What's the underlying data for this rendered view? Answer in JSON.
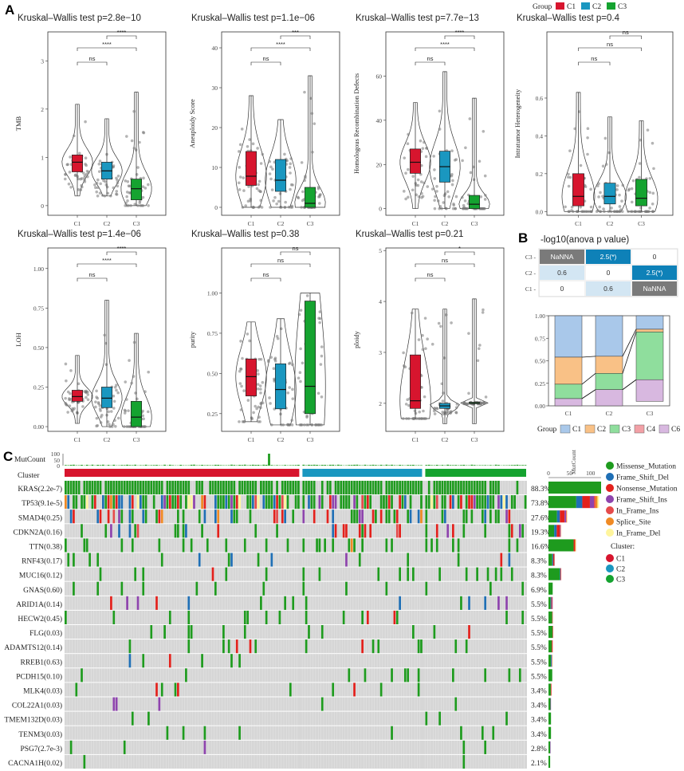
{
  "panels": {
    "a": "A",
    "b": "B",
    "c": "C"
  },
  "group_legend": {
    "title": "Group",
    "items": [
      {
        "label": "C1",
        "color": "#D7152E"
      },
      {
        "label": "C2",
        "color": "#1A97C0"
      },
      {
        "label": "C3",
        "color": "#15A330"
      }
    ]
  },
  "chart_data": [
    {
      "type": "box-violin",
      "panel": "A",
      "title": "Kruskal–Wallis test p=2.8e−10",
      "ylabel": "TMB",
      "categories": [
        "C1",
        "C2",
        "C3"
      ],
      "ylim": [
        -0.2,
        3.6
      ],
      "yticks": [
        "0",
        "1",
        "2",
        "3"
      ],
      "series": [
        {
          "name": "C1",
          "median": 0.9,
          "q1": 0.7,
          "q3": 1.05,
          "whisker": [
            0.2,
            2.1
          ]
        },
        {
          "name": "C2",
          "median": 0.72,
          "q1": 0.55,
          "q3": 0.9,
          "whisker": [
            0.2,
            1.8
          ]
        },
        {
          "name": "C3",
          "median": 0.35,
          "q1": 0.12,
          "q3": 0.55,
          "whisker": [
            0,
            2.35
          ]
        }
      ],
      "comparisons": [
        {
          "pair": [
            "C1",
            "C2"
          ],
          "label": "ns"
        },
        {
          "pair": [
            "C1",
            "C3"
          ],
          "label": "****"
        },
        {
          "pair": [
            "C2",
            "C3"
          ],
          "label": "****"
        }
      ]
    },
    {
      "type": "box-violin",
      "panel": "A",
      "title": "Kruskal–Wallis test p=1.1e−06",
      "ylabel": "Aneuploidy Score",
      "categories": [
        "C1",
        "C2",
        "C3"
      ],
      "ylim": [
        -2,
        44
      ],
      "yticks": [
        "0",
        "10",
        "20",
        "30",
        "40"
      ],
      "series": [
        {
          "name": "C1",
          "median": 7.8,
          "q1": 5.5,
          "q3": 14,
          "whisker": [
            0,
            28
          ]
        },
        {
          "name": "C2",
          "median": 6.8,
          "q1": 4,
          "q3": 12,
          "whisker": [
            0,
            22
          ]
        },
        {
          "name": "C3",
          "median": 1,
          "q1": 0,
          "q3": 5,
          "whisker": [
            0,
            33
          ]
        }
      ],
      "comparisons": [
        {
          "pair": [
            "C1",
            "C2"
          ],
          "label": "ns"
        },
        {
          "pair": [
            "C1",
            "C3"
          ],
          "label": "****"
        },
        {
          "pair": [
            "C2",
            "C3"
          ],
          "label": "***"
        }
      ]
    },
    {
      "type": "box-violin",
      "panel": "A",
      "title": "Kruskal–Wallis test p=7.7e−13",
      "ylabel": "Homologous Recombination Defects",
      "categories": [
        "C1",
        "C2",
        "C3"
      ],
      "ylim": [
        -3,
        80
      ],
      "yticks": [
        "0",
        "20",
        "40",
        "60"
      ],
      "series": [
        {
          "name": "C1",
          "median": 21,
          "q1": 16,
          "q3": 27,
          "whisker": [
            0,
            48
          ]
        },
        {
          "name": "C2",
          "median": 19,
          "q1": 12,
          "q3": 26,
          "whisker": [
            0,
            62
          ]
        },
        {
          "name": "C3",
          "median": 2,
          "q1": 0,
          "q3": 6,
          "whisker": [
            0,
            50
          ]
        }
      ],
      "comparisons": [
        {
          "pair": [
            "C1",
            "C2"
          ],
          "label": "ns"
        },
        {
          "pair": [
            "C1",
            "C3"
          ],
          "label": "****"
        },
        {
          "pair": [
            "C2",
            "C3"
          ],
          "label": "****"
        }
      ]
    },
    {
      "type": "box-violin",
      "panel": "A",
      "title": "Kruskal–Wallis test p=0.4",
      "ylabel": "Intratumor Heterogeneity",
      "categories": [
        "C1",
        "C2",
        "C3"
      ],
      "ylim": [
        -0.02,
        0.95
      ],
      "yticks": [
        "0.0",
        "0.2",
        "0.4",
        "0.6"
      ],
      "series": [
        {
          "name": "C1",
          "median": 0.08,
          "q1": 0.03,
          "q3": 0.2,
          "whisker": [
            0,
            0.63
          ]
        },
        {
          "name": "C2",
          "median": 0.08,
          "q1": 0.04,
          "q3": 0.15,
          "whisker": [
            0,
            0.5
          ]
        },
        {
          "name": "C3",
          "median": 0.07,
          "q1": 0.03,
          "q3": 0.17,
          "whisker": [
            0,
            0.48
          ]
        }
      ],
      "comparisons": [
        {
          "pair": [
            "C1",
            "C2"
          ],
          "label": "ns"
        },
        {
          "pair": [
            "C1",
            "C3"
          ],
          "label": "ns"
        },
        {
          "pair": [
            "C2",
            "C3"
          ],
          "label": "ns"
        }
      ]
    },
    {
      "type": "box-violin",
      "panel": "A",
      "title": "Kruskal–Wallis test p=1.4e−06",
      "ylabel": "LOH",
      "categories": [
        "C1",
        "C2",
        "C3"
      ],
      "ylim": [
        -0.03,
        1.13
      ],
      "yticks": [
        "0.00",
        "0.25",
        "0.50",
        "0.75",
        "1.00"
      ],
      "series": [
        {
          "name": "C1",
          "median": 0.19,
          "q1": 0.16,
          "q3": 0.23,
          "whisker": [
            0.02,
            0.45
          ]
        },
        {
          "name": "C2",
          "median": 0.18,
          "q1": 0.12,
          "q3": 0.25,
          "whisker": [
            0,
            0.8
          ]
        },
        {
          "name": "C3",
          "median": 0.06,
          "q1": 0,
          "q3": 0.16,
          "whisker": [
            0,
            0.59
          ]
        }
      ],
      "comparisons": [
        {
          "pair": [
            "C1",
            "C2"
          ],
          "label": "ns"
        },
        {
          "pair": [
            "C1",
            "C3"
          ],
          "label": "****"
        },
        {
          "pair": [
            "C2",
            "C3"
          ],
          "label": "****"
        }
      ]
    },
    {
      "type": "box-violin",
      "panel": "A",
      "title": "Kruskal–Wallis test p=0.38",
      "ylabel": "purity",
      "categories": [
        "C1",
        "C2",
        "C3"
      ],
      "ylim": [
        0.14,
        1.28
      ],
      "yticks": [
        "0.25",
        "0.50",
        "0.75",
        "1.00"
      ],
      "series": [
        {
          "name": "C1",
          "median": 0.48,
          "q1": 0.36,
          "q3": 0.59,
          "whisker": [
            0.2,
            0.82
          ]
        },
        {
          "name": "C2",
          "median": 0.4,
          "q1": 0.28,
          "q3": 0.56,
          "whisker": [
            0.18,
            0.84
          ]
        },
        {
          "name": "C3",
          "median": 0.42,
          "q1": 0.25,
          "q3": 0.95,
          "whisker": [
            0.18,
            1
          ]
        }
      ],
      "comparisons": [
        {
          "pair": [
            "C1",
            "C2"
          ],
          "label": "ns"
        },
        {
          "pair": [
            "C1",
            "C3"
          ],
          "label": "ns"
        },
        {
          "pair": [
            "C2",
            "C3"
          ],
          "label": "ns"
        }
      ]
    },
    {
      "type": "box-violin",
      "panel": "A",
      "title": "Kruskal–Wallis test p=0.21",
      "ylabel": "ploidy",
      "categories": [
        "C1",
        "C2",
        "C3"
      ],
      "ylim": [
        1.45,
        5.05
      ],
      "yticks": [
        "2",
        "3",
        "4",
        "5"
      ],
      "series": [
        {
          "name": "C1",
          "median": 2.05,
          "q1": 1.9,
          "q3": 2.95,
          "whisker": [
            1.7,
            3.85
          ]
        },
        {
          "name": "C2",
          "median": 1.95,
          "q1": 1.9,
          "q3": 2.0,
          "whisker": [
            1.6,
            3.85
          ]
        },
        {
          "name": "C3",
          "median": 2.0,
          "q1": 2.0,
          "q3": 2.02,
          "whisker": [
            1.6,
            4.05
          ]
        }
      ],
      "comparisons": [
        {
          "pair": [
            "C1",
            "C2"
          ],
          "label": "ns"
        },
        {
          "pair": [
            "C1",
            "C3"
          ],
          "label": "ns"
        },
        {
          "pair": [
            "C2",
            "C3"
          ],
          "label": "*"
        }
      ]
    },
    {
      "type": "heatmap",
      "panel": "B",
      "title": "-log10(anova p value)",
      "rows": [
        "C3",
        "C2",
        "C1"
      ],
      "cells": [
        [
          "NaNNA",
          "2.5(*)",
          "0"
        ],
        [
          "0.6",
          "0",
          "2.5(*)"
        ],
        [
          "0",
          "0.6",
          "NaNNA"
        ]
      ]
    },
    {
      "type": "stacked-bar",
      "panel": "B",
      "categories": [
        "C1",
        "C2",
        "C3"
      ],
      "ylim": [
        0,
        1
      ],
      "yticks": [
        "0.00",
        "0.25",
        "0.50",
        "0.75",
        "1.00"
      ],
      "series": [
        {
          "name": "C1",
          "color": "#A9C8EA",
          "values": [
            0.46,
            0.45,
            0.15
          ]
        },
        {
          "name": "C2",
          "color": "#F9C186",
          "values": [
            0.3,
            0.19,
            0.03
          ]
        },
        {
          "name": "C3",
          "color": "#8FDE9D",
          "values": [
            0.16,
            0.18,
            0.53
          ]
        },
        {
          "name": "C4",
          "color": "#F2A0A6",
          "values": [
            0,
            0,
            0
          ]
        },
        {
          "name": "C6",
          "color": "#D8B8E0",
          "values": [
            0.08,
            0.18,
            0.24
          ]
        }
      ],
      "legend_title": "Group"
    }
  ],
  "oncoplot": {
    "mutcount_label": "MutCount",
    "mutcount_ticks": [
      "100",
      "50",
      "0"
    ],
    "cluster_label": "Cluster",
    "genes": [
      {
        "name": "KRAS(2.2e-7)",
        "pct": "88.3%",
        "frac": 0.883,
        "total": 125,
        "split": [
          1,
          0,
          0,
          0,
          0,
          0,
          0
        ]
      },
      {
        "name": "TP53(9.1e-5)",
        "pct": "73.8%",
        "frac": 0.738,
        "total": 120,
        "split": [
          0.55,
          0.12,
          0.15,
          0.08,
          0.03,
          0.04,
          0.03
        ]
      },
      {
        "name": "SMAD4(0.25)",
        "pct": "27.6%",
        "frac": 0.276,
        "total": 45,
        "split": [
          0.45,
          0.15,
          0.25,
          0.08,
          0.03,
          0.02,
          0.02
        ]
      },
      {
        "name": "CDKN2A(0.16)",
        "pct": "19.3%",
        "frac": 0.193,
        "total": 30,
        "split": [
          0.45,
          0.2,
          0.25,
          0.05,
          0.03,
          0.01,
          0.01
        ]
      },
      {
        "name": "TTN(0.38)",
        "pct": "16.6%",
        "frac": 0.166,
        "total": 65,
        "split": [
          0.92,
          0,
          0.05,
          0,
          0,
          0.03,
          0
        ]
      },
      {
        "name": "RNF43(0.17)",
        "pct": "8.3%",
        "frac": 0.083,
        "total": 15,
        "split": [
          0.6,
          0.15,
          0.15,
          0.05,
          0,
          0.05,
          0
        ]
      },
      {
        "name": "MUC16(0.12)",
        "pct": "8.3%",
        "frac": 0.083,
        "total": 30,
        "split": [
          0.9,
          0.05,
          0.05,
          0,
          0,
          0,
          0
        ]
      },
      {
        "name": "GNAS(0.60)",
        "pct": "6.9%",
        "frac": 0.069,
        "total": 10,
        "split": [
          1,
          0,
          0,
          0,
          0,
          0,
          0
        ]
      },
      {
        "name": "ARID1A(0.14)",
        "pct": "5.5%",
        "frac": 0.055,
        "total": 10,
        "split": [
          0.5,
          0.2,
          0.2,
          0.1,
          0,
          0,
          0
        ]
      },
      {
        "name": "HECW2(0.45)",
        "pct": "5.5%",
        "frac": 0.055,
        "total": 10,
        "split": [
          0.9,
          0,
          0.1,
          0,
          0,
          0,
          0
        ]
      },
      {
        "name": "FLG(0.03)",
        "pct": "5.5%",
        "frac": 0.055,
        "total": 11,
        "split": [
          0.9,
          0,
          0.1,
          0,
          0,
          0,
          0
        ]
      },
      {
        "name": "ADAMTS12(0.14)",
        "pct": "5.5%",
        "frac": 0.055,
        "total": 10,
        "split": [
          0.8,
          0,
          0.2,
          0,
          0,
          0,
          0
        ]
      },
      {
        "name": "RREB1(0.63)",
        "pct": "5.5%",
        "frac": 0.055,
        "total": 10,
        "split": [
          0.6,
          0.2,
          0.1,
          0,
          0,
          0,
          0.1
        ]
      },
      {
        "name": "PCDH15(0.10)",
        "pct": "5.5%",
        "frac": 0.055,
        "total": 9,
        "split": [
          1,
          0,
          0,
          0,
          0,
          0,
          0
        ]
      },
      {
        "name": "MLK4(0.03)",
        "pct": "3.4%",
        "frac": 0.034,
        "total": 7,
        "split": [
          0.8,
          0,
          0.2,
          0,
          0,
          0,
          0
        ]
      },
      {
        "name": "COL22A1(0.03)",
        "pct": "3.4%",
        "frac": 0.034,
        "total": 6,
        "split": [
          0.8,
          0,
          0,
          0.2,
          0,
          0,
          0
        ]
      },
      {
        "name": "TMEM132D(0.03)",
        "pct": "3.4%",
        "frac": 0.034,
        "total": 6,
        "split": [
          1,
          0,
          0,
          0,
          0,
          0,
          0
        ]
      },
      {
        "name": "TENM3(0.03)",
        "pct": "3.4%",
        "frac": 0.034,
        "total": 6,
        "split": [
          1,
          0,
          0,
          0,
          0,
          0,
          0
        ]
      },
      {
        "name": "PSG7(2.7e-3)",
        "pct": "2.8%",
        "frac": 0.028,
        "total": 5,
        "split": [
          0.8,
          0,
          0,
          0.2,
          0,
          0,
          0
        ]
      },
      {
        "name": "CACNA1H(0.02)",
        "pct": "2.1%",
        "frac": 0.021,
        "total": 4,
        "split": [
          1,
          0,
          0,
          0,
          0,
          0,
          0
        ]
      }
    ],
    "side_axis_label": "MutCount",
    "side_ticks": [
      "0",
      "50",
      "100"
    ],
    "variant_legend": [
      {
        "label": "Missense_Mutation",
        "color": "#1E9B1E"
      },
      {
        "label": "Frame_Shift_Del",
        "color": "#1F6FB5"
      },
      {
        "label": "Nonsense_Mutation",
        "color": "#E3211C"
      },
      {
        "label": "Frame_Shift_Ins",
        "color": "#8E44AD"
      },
      {
        "label": "In_Frame_Ins",
        "color": "#E54B4B"
      },
      {
        "label": "Splice_Site",
        "color": "#F08A24"
      },
      {
        "label": "In_Frame_Del",
        "color": "#FFF59D"
      }
    ],
    "cluster_legend": {
      "title": "Cluster:",
      "items": [
        {
          "label": "C1",
          "color": "#D7152E"
        },
        {
          "label": "C2",
          "color": "#1A97C0"
        },
        {
          "label": "C3",
          "color": "#15A330"
        }
      ]
    }
  }
}
